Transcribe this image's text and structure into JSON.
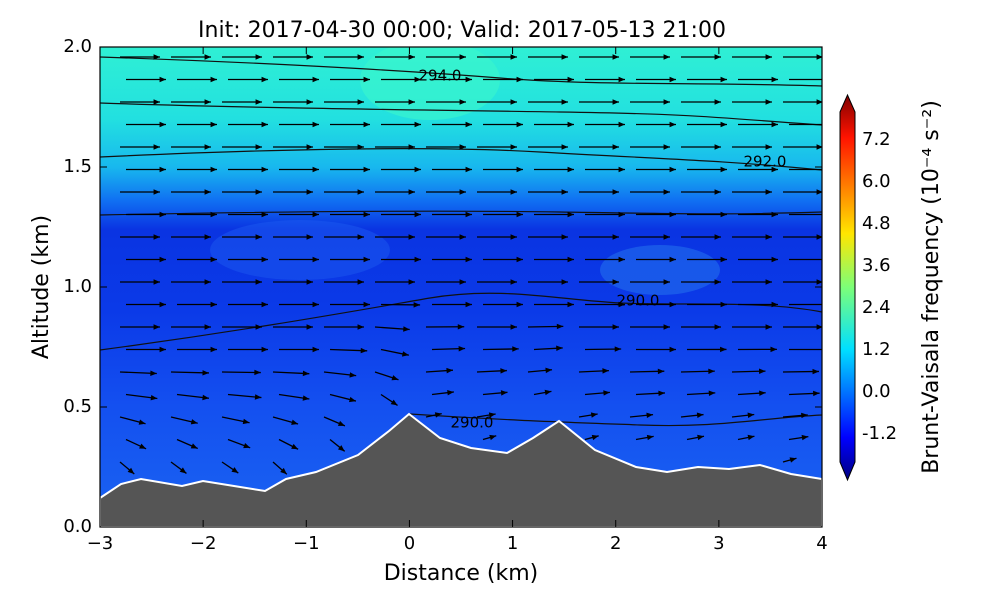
{
  "chart_data": {
    "type": "contourf",
    "title": "Init: 2017-04-30 00:00; Valid: 2017-05-13 21:00",
    "x_label": "Distance (km)",
    "y_label": "Altitude (km)",
    "xlim": [
      -3,
      4
    ],
    "xticks": [
      {
        "value": -3,
        "label": "−3"
      },
      {
        "value": -2,
        "label": "−2"
      },
      {
        "value": -1,
        "label": "−1"
      },
      0,
      1,
      2,
      3,
      4
    ],
    "ylim": [
      0,
      2
    ],
    "yticks": [
      {
        "value": 0,
        "label": "0.0"
      },
      0.5,
      {
        "value": 1,
        "label": "1.0"
      },
      1.5,
      {
        "value": 2,
        "label": "2.0"
      }
    ],
    "colorbar": {
      "label": "Brunt-Vaisala frequency (10⁻⁴ s⁻²)",
      "lim": [
        -2,
        8
      ],
      "ticks": [
        -1.2,
        {
          "value": 0,
          "label": "0.0"
        },
        1.2,
        2.4,
        3.6,
        4.8,
        {
          "value": 6,
          "label": "6.0"
        },
        7.2
      ]
    },
    "annotations": [
      "294.0",
      "292.0",
      "290.0",
      "290.0"
    ]
  }
}
